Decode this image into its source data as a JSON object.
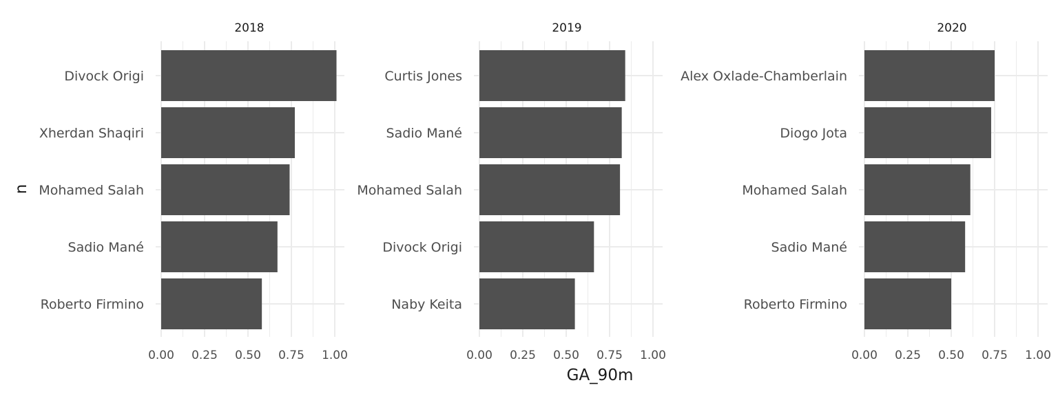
{
  "chart_data": {
    "type": "bar",
    "orientation": "horizontal",
    "xlabel": "GA_90m",
    "ylabel": "n",
    "xlim": [
      0,
      1.05
    ],
    "xticks": [
      "0.00",
      "0.25",
      "0.50",
      "0.75",
      "1.00"
    ],
    "grid": true,
    "bar_color": "#505050",
    "grid_color": "#ebebeb",
    "panels": [
      {
        "title": "2018",
        "categories": [
          "Divock Origi",
          "Xherdan Shaqiri",
          "Mohamed Salah",
          "Sadio Mané",
          "Roberto Firmino"
        ],
        "values": [
          1.01,
          0.77,
          0.74,
          0.67,
          0.58
        ]
      },
      {
        "title": "2019",
        "categories": [
          "Curtis Jones",
          "Sadio Mané",
          "Mohamed Salah",
          "Divock Origi",
          "Naby Keita"
        ],
        "values": [
          0.84,
          0.82,
          0.81,
          0.66,
          0.55
        ]
      },
      {
        "title": "2020",
        "categories": [
          "Alex Oxlade-Chamberlain",
          "Diogo Jota",
          "Mohamed Salah",
          "Sadio Mané",
          "Roberto Firmino"
        ],
        "values": [
          0.75,
          0.73,
          0.61,
          0.58,
          0.5
        ]
      }
    ]
  }
}
